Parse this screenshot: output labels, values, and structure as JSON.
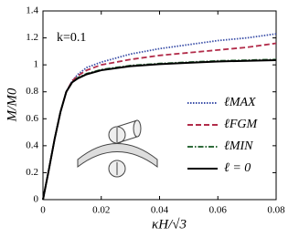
{
  "chart_data": {
    "type": "line",
    "xlabel": "κH/√3",
    "ylabel": "M/M0",
    "annotation": "k=0.1",
    "x": [
      0,
      0.002,
      0.004,
      0.006,
      0.008,
      0.01,
      0.012,
      0.015,
      0.02,
      0.03,
      0.04,
      0.05,
      0.06,
      0.07,
      0.08
    ],
    "series": [
      {
        "name": "ℓMAX",
        "color": "#3b4fa8",
        "style": "dotted",
        "values": [
          0,
          0.22,
          0.45,
          0.65,
          0.8,
          0.88,
          0.93,
          0.98,
          1.02,
          1.08,
          1.12,
          1.15,
          1.18,
          1.2,
          1.23
        ]
      },
      {
        "name": "ℓFGM",
        "color": "#b22c4a",
        "style": "dashed",
        "values": [
          0,
          0.22,
          0.45,
          0.65,
          0.8,
          0.88,
          0.92,
          0.96,
          1.0,
          1.04,
          1.07,
          1.09,
          1.11,
          1.13,
          1.16
        ]
      },
      {
        "name": "ℓMIN",
        "color": "#2f6b3a",
        "style": "dashdot",
        "values": [
          0,
          0.22,
          0.45,
          0.65,
          0.8,
          0.87,
          0.905,
          0.935,
          0.965,
          0.995,
          1.01,
          1.02,
          1.03,
          1.035,
          1.04
        ]
      },
      {
        "name": "ℓ = 0",
        "color": "#000000",
        "style": "solid",
        "values": [
          0,
          0.22,
          0.45,
          0.65,
          0.8,
          0.87,
          0.9,
          0.93,
          0.96,
          0.99,
          1.005,
          1.015,
          1.025,
          1.03,
          1.035
        ]
      }
    ],
    "xlim": [
      0,
      0.08
    ],
    "xticks": [
      0,
      0.02,
      0.04,
      0.06,
      0.08
    ],
    "ylim": [
      0,
      1.4
    ],
    "yticks": [
      0,
      0.2,
      0.4,
      0.6,
      0.8,
      1,
      1.2,
      1.4
    ],
    "legend": "lower right"
  }
}
